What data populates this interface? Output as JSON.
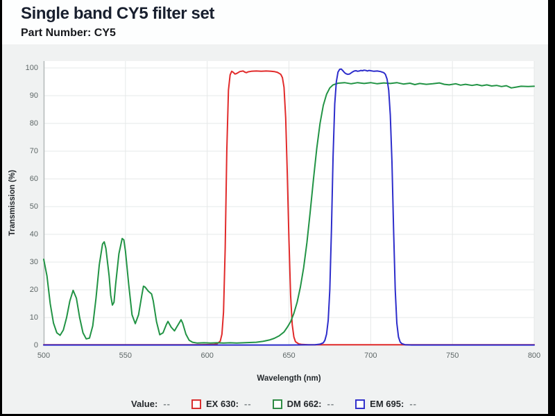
{
  "header": {
    "title": "Single band CY5 filter set",
    "part_number": "Part Number: CY5"
  },
  "legend": {
    "items": [
      {
        "label": "Value:",
        "value": "--",
        "color": null
      },
      {
        "label": "EX 630:",
        "value": "--",
        "color": "#d92f2f"
      },
      {
        "label": "DM 662:",
        "value": "--",
        "color": "#2e8b44"
      },
      {
        "label": "EM 695:",
        "value": "--",
        "color": "#3232cc"
      }
    ]
  },
  "colors": {
    "grid": "#e6e8e8",
    "axis": "#b2b8b8",
    "plot_bg": "#ffffff",
    "panel_bg": "#f0f2f2",
    "ex_line": "#e12a2a",
    "dm_line": "#219344",
    "em_line": "#2c2ccb"
  },
  "chart_data": {
    "type": "line",
    "title": "Single band CY5 filter set",
    "xlabel": "Wavelength (nm)",
    "ylabel": "Transmission (%)",
    "xlim": [
      500,
      800
    ],
    "ylim": [
      0,
      100
    ],
    "x_ticks": [
      500,
      550,
      600,
      650,
      700,
      750,
      800
    ],
    "y_ticks": [
      0,
      10,
      20,
      30,
      40,
      50,
      60,
      70,
      80,
      90,
      100
    ],
    "grid": true,
    "legend_position": "bottom",
    "series": [
      {
        "name": "EX 630",
        "color": "#e12a2a",
        "points": [
          [
            500,
            0.2
          ],
          [
            560,
            0.2
          ],
          [
            590,
            0.2
          ],
          [
            600,
            0.25
          ],
          [
            604,
            0.3
          ],
          [
            606,
            0.5
          ],
          [
            608,
            1.5
          ],
          [
            609,
            4
          ],
          [
            610,
            12
          ],
          [
            611,
            35
          ],
          [
            612,
            70
          ],
          [
            613,
            92
          ],
          [
            614,
            97.5
          ],
          [
            615,
            98.8
          ],
          [
            616,
            98.4
          ],
          [
            617,
            97.8
          ],
          [
            618,
            98.0
          ],
          [
            620,
            98.7
          ],
          [
            622,
            98.9
          ],
          [
            623,
            98.5
          ],
          [
            624,
            98.3
          ],
          [
            625,
            98.6
          ],
          [
            627,
            98.8
          ],
          [
            630,
            98.9
          ],
          [
            633,
            98.8
          ],
          [
            636,
            98.9
          ],
          [
            639,
            98.8
          ],
          [
            641,
            98.7
          ],
          [
            643,
            98.4
          ],
          [
            645,
            97.7
          ],
          [
            646,
            96.5
          ],
          [
            647,
            93
          ],
          [
            648,
            82
          ],
          [
            649,
            62
          ],
          [
            650,
            38
          ],
          [
            651,
            18
          ],
          [
            652,
            7.5
          ],
          [
            653,
            3
          ],
          [
            654,
            1.3
          ],
          [
            656,
            0.5
          ],
          [
            658,
            0.3
          ],
          [
            662,
            0.2
          ],
          [
            700,
            0.2
          ],
          [
            750,
            0.2
          ],
          [
            800,
            0.2
          ]
        ]
      },
      {
        "name": "DM 662",
        "color": "#219344",
        "points": [
          [
            500,
            31
          ],
          [
            502,
            25
          ],
          [
            504,
            15
          ],
          [
            506,
            8
          ],
          [
            508,
            4.5
          ],
          [
            510,
            3.6
          ],
          [
            512,
            5.5
          ],
          [
            514,
            10
          ],
          [
            516,
            16
          ],
          [
            518,
            19.8
          ],
          [
            520,
            17
          ],
          [
            522,
            10
          ],
          [
            524,
            4.5
          ],
          [
            526,
            2.3
          ],
          [
            528,
            2.6
          ],
          [
            530,
            7
          ],
          [
            532,
            17
          ],
          [
            534,
            29
          ],
          [
            536,
            36.5
          ],
          [
            537,
            37.3
          ],
          [
            538,
            35
          ],
          [
            540,
            25
          ],
          [
            541,
            18
          ],
          [
            542,
            14.5
          ],
          [
            543,
            15.5
          ],
          [
            544,
            22
          ],
          [
            546,
            33
          ],
          [
            548,
            38.5
          ],
          [
            549,
            38
          ],
          [
            550,
            34
          ],
          [
            552,
            22
          ],
          [
            554,
            11
          ],
          [
            556,
            7.8
          ],
          [
            558,
            11
          ],
          [
            560,
            18
          ],
          [
            561,
            21.3
          ],
          [
            562,
            21
          ],
          [
            564,
            19.5
          ],
          [
            566,
            18.5
          ],
          [
            567,
            16
          ],
          [
            569,
            8.5
          ],
          [
            571,
            3.8
          ],
          [
            573,
            4.5
          ],
          [
            575,
            7.5
          ],
          [
            576,
            8.6
          ],
          [
            578,
            6.5
          ],
          [
            580,
            5.2
          ],
          [
            582,
            7.2
          ],
          [
            584,
            9.2
          ],
          [
            585,
            8
          ],
          [
            587,
            4
          ],
          [
            589,
            1.8
          ],
          [
            591,
            1.1
          ],
          [
            594,
            0.8
          ],
          [
            598,
            0.9
          ],
          [
            602,
            0.8
          ],
          [
            606,
            0.9
          ],
          [
            610,
            0.8
          ],
          [
            614,
            0.9
          ],
          [
            618,
            0.8
          ],
          [
            622,
            0.9
          ],
          [
            626,
            1.0
          ],
          [
            630,
            1.1
          ],
          [
            634,
            1.4
          ],
          [
            638,
            1.9
          ],
          [
            641,
            2.5
          ],
          [
            644,
            3.4
          ],
          [
            647,
            4.8
          ],
          [
            649,
            6.5
          ],
          [
            651,
            8.5
          ],
          [
            653,
            11.5
          ],
          [
            655,
            15.5
          ],
          [
            657,
            21
          ],
          [
            659,
            28
          ],
          [
            661,
            37
          ],
          [
            663,
            48
          ],
          [
            665,
            60
          ],
          [
            667,
            71
          ],
          [
            669,
            80
          ],
          [
            671,
            86.5
          ],
          [
            673,
            90.5
          ],
          [
            675,
            92.8
          ],
          [
            677,
            93.9
          ],
          [
            680,
            94.5
          ],
          [
            684,
            94.7
          ],
          [
            688,
            94.3
          ],
          [
            692,
            94.7
          ],
          [
            696,
            94.4
          ],
          [
            700,
            94.7
          ],
          [
            704,
            94.3
          ],
          [
            708,
            94.6
          ],
          [
            712,
            94.4
          ],
          [
            716,
            94.7
          ],
          [
            720,
            94.2
          ],
          [
            724,
            94.5
          ],
          [
            727,
            94.0
          ],
          [
            730,
            94.4
          ],
          [
            734,
            94.1
          ],
          [
            738,
            94.3
          ],
          [
            742,
            94.6
          ],
          [
            745,
            94.1
          ],
          [
            748,
            93.9
          ],
          [
            752,
            94.3
          ],
          [
            755,
            93.8
          ],
          [
            758,
            94.1
          ],
          [
            762,
            93.7
          ],
          [
            765,
            94.0
          ],
          [
            768,
            93.6
          ],
          [
            771,
            93.9
          ],
          [
            774,
            93.5
          ],
          [
            777,
            93.7
          ],
          [
            780,
            93.3
          ],
          [
            783,
            93.6
          ],
          [
            786,
            92.8
          ],
          [
            789,
            93.1
          ],
          [
            792,
            93.4
          ],
          [
            796,
            93.3
          ],
          [
            800,
            93.4
          ]
        ]
      },
      {
        "name": "EM 695",
        "color": "#2c2ccb",
        "points": [
          [
            500,
            0.1
          ],
          [
            600,
            0.1
          ],
          [
            650,
            0.1
          ],
          [
            660,
            0.15
          ],
          [
            666,
            0.2
          ],
          [
            669,
            0.4
          ],
          [
            671,
            0.9
          ],
          [
            672,
            1.8
          ],
          [
            673,
            4
          ],
          [
            674,
            9
          ],
          [
            675,
            20
          ],
          [
            676,
            42
          ],
          [
            677,
            68
          ],
          [
            678,
            87
          ],
          [
            679,
            95
          ],
          [
            680,
            98.5
          ],
          [
            681,
            99.5
          ],
          [
            682,
            99.6
          ],
          [
            683,
            99.0
          ],
          [
            684,
            98.3
          ],
          [
            685,
            97.9
          ],
          [
            686,
            97.7
          ],
          [
            687,
            97.8
          ],
          [
            688,
            98.2
          ],
          [
            689,
            98.6
          ],
          [
            690,
            98.9
          ],
          [
            691,
            99.0
          ],
          [
            692,
            98.8
          ],
          [
            693,
            98.9
          ],
          [
            694,
            99.1
          ],
          [
            695,
            99.0
          ],
          [
            696,
            99.2
          ],
          [
            697,
            99.1
          ],
          [
            698,
            98.9
          ],
          [
            699,
            99.1
          ],
          [
            700,
            99.0
          ],
          [
            702,
            98.8
          ],
          [
            704,
            98.9
          ],
          [
            706,
            98.7
          ],
          [
            708,
            98.3
          ],
          [
            709,
            97.7
          ],
          [
            710,
            96
          ],
          [
            711,
            92
          ],
          [
            712,
            83
          ],
          [
            713,
            66
          ],
          [
            714,
            42
          ],
          [
            715,
            20
          ],
          [
            716,
            8
          ],
          [
            717,
            3
          ],
          [
            718,
            1.2
          ],
          [
            719,
            0.6
          ],
          [
            721,
            0.2
          ],
          [
            725,
            0.1
          ],
          [
            760,
            0.1
          ],
          [
            800,
            0.1
          ]
        ]
      }
    ]
  }
}
